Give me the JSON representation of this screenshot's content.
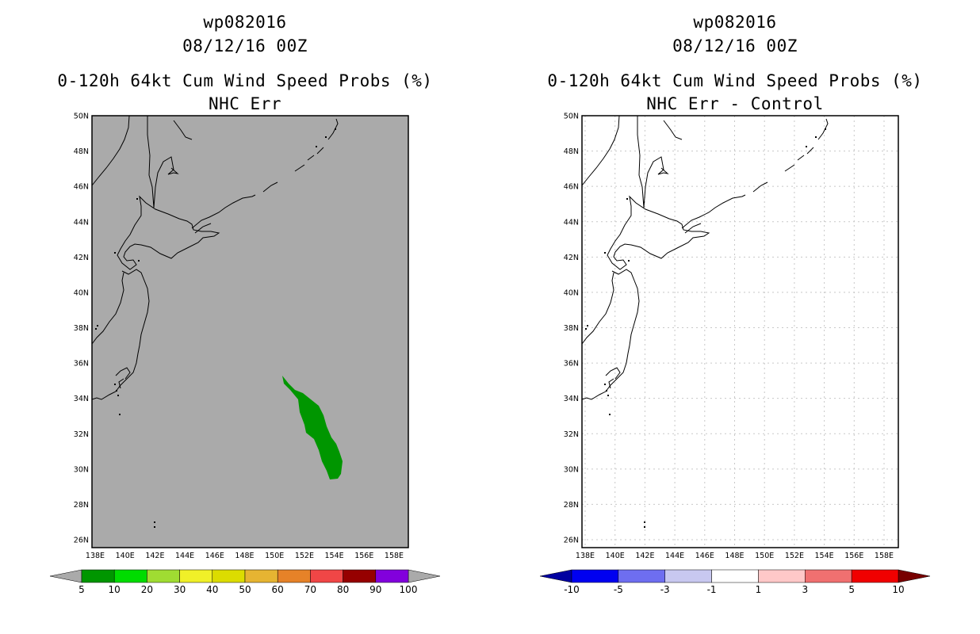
{
  "panels": [
    {
      "id": "left",
      "title_line1": "wp082016",
      "title_line2": "08/12/16 00Z",
      "title_line3": "0-120h 64kt Cum Wind Speed Probs (%)",
      "title_line4": "NHC Err",
      "map_background": "#aaaaaa",
      "grid": false,
      "show_prob_area": true,
      "prob_area_color": "#009600",
      "colorbar": {
        "labels": [
          "5",
          "10",
          "20",
          "30",
          "40",
          "50",
          "60",
          "70",
          "80",
          "90",
          "100"
        ],
        "colors": [
          "#009600",
          "#00dc00",
          "#a0dc32",
          "#f0f028",
          "#dcdc00",
          "#e6b432",
          "#e68228",
          "#f04646",
          "#960000",
          "#8200dc"
        ],
        "left_tip": "#aaaaaa",
        "right_tip": "#aaaaaa"
      }
    },
    {
      "id": "right",
      "title_line1": "wp082016",
      "title_line2": "08/12/16 00Z",
      "title_line3": "0-120h 64kt Cum Wind Speed Probs (%)",
      "title_line4": "NHC Err - Control",
      "map_background": "#ffffff",
      "grid": true,
      "show_prob_area": false,
      "colorbar": {
        "labels": [
          "-10",
          "-5",
          "-3",
          "-1",
          "1",
          "3",
          "5",
          "10"
        ],
        "colors": [
          "#0000f0",
          "#6e6ef0",
          "#c8c8f0",
          "#ffffff",
          "#ffc8c8",
          "#f07070",
          "#f00000"
        ],
        "left_tip": "#0000a0",
        "right_tip": "#780000"
      }
    }
  ],
  "map_axes": {
    "lon_ticks": [
      "138E",
      "140E",
      "142E",
      "144E",
      "146E",
      "148E",
      "150E",
      "152E",
      "154E",
      "156E",
      "158E"
    ],
    "lat_ticks": [
      "50N",
      "48N",
      "46N",
      "44N",
      "42N",
      "40N",
      "38N",
      "36N",
      "34N",
      "32N",
      "30N",
      "28N",
      "26N"
    ]
  }
}
